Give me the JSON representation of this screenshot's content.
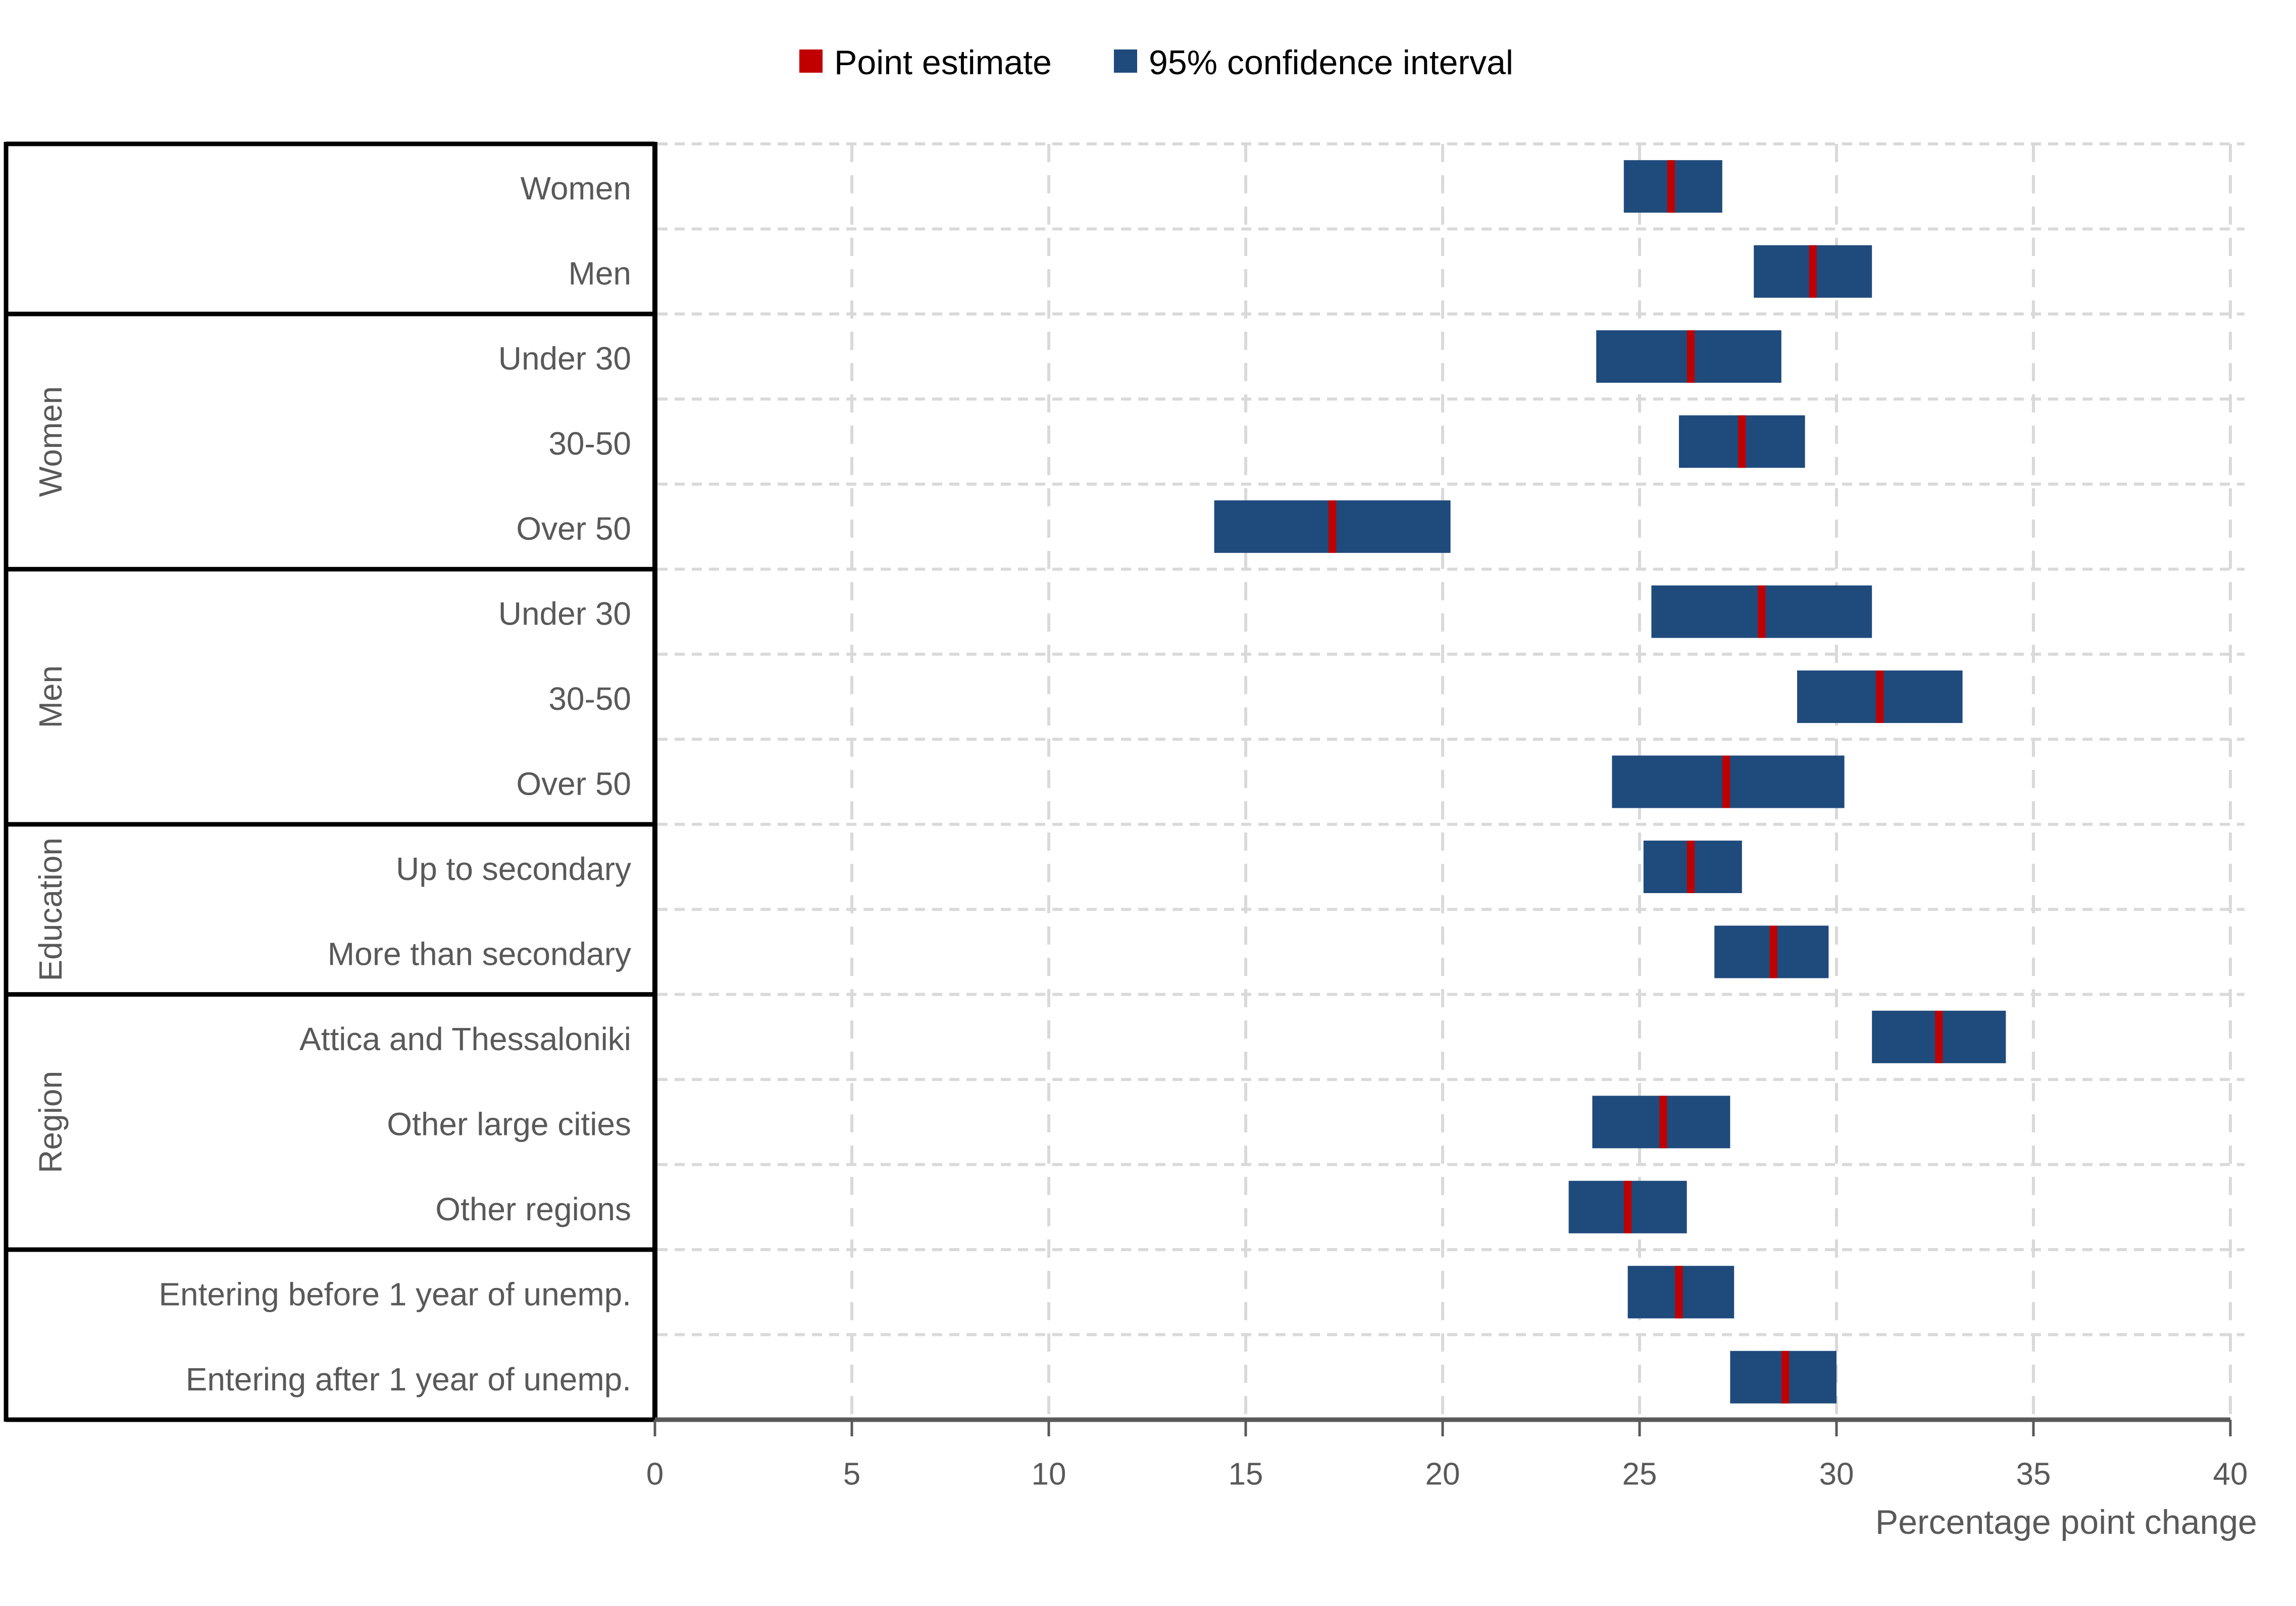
{
  "legend": {
    "items": [
      {
        "label": "Point estimate",
        "color": "#C00000"
      },
      {
        "label": "95% confidence interval",
        "color": "#1F4A7C"
      }
    ]
  },
  "axis": {
    "title": "Percentage point change"
  },
  "chart_data": {
    "type": "bar",
    "subtype": "horizontal-interval-with-point-markers",
    "title": "",
    "xlabel": "Percentage point change",
    "ylabel": "",
    "xlim": [
      0,
      40
    ],
    "xticks": [
      0,
      5,
      10,
      15,
      20,
      25,
      30,
      35,
      40
    ],
    "grid": true,
    "legend": [
      "Point estimate",
      "95% confidence interval"
    ],
    "legend_position": "top-center",
    "colors": {
      "point_estimate": "#C00000",
      "confidence_interval": "#1F4A7C"
    },
    "groups": [
      {
        "group": "",
        "rows": [
          {
            "label": "Women",
            "ci_low": 24.6,
            "ci_high": 27.1,
            "point": 25.8
          },
          {
            "label": "Men",
            "ci_low": 27.9,
            "ci_high": 30.9,
            "point": 29.4
          }
        ]
      },
      {
        "group": "Women",
        "rows": [
          {
            "label": "Under 30",
            "ci_low": 23.9,
            "ci_high": 28.6,
            "point": 26.3
          },
          {
            "label": "30-50",
            "ci_low": 26.0,
            "ci_high": 29.2,
            "point": 27.6
          },
          {
            "label": "Over 50",
            "ci_low": 14.2,
            "ci_high": 20.2,
            "point": 17.2
          }
        ]
      },
      {
        "group": "Men",
        "rows": [
          {
            "label": "Under 30",
            "ci_low": 25.3,
            "ci_high": 30.9,
            "point": 28.1
          },
          {
            "label": "30-50",
            "ci_low": 29.0,
            "ci_high": 33.2,
            "point": 31.1
          },
          {
            "label": "Over 50",
            "ci_low": 24.3,
            "ci_high": 30.2,
            "point": 27.2
          }
        ]
      },
      {
        "group": "Education",
        "rows": [
          {
            "label": "Up to secondary",
            "ci_low": 25.1,
            "ci_high": 27.6,
            "point": 26.3
          },
          {
            "label": "More than secondary",
            "ci_low": 26.9,
            "ci_high": 29.8,
            "point": 28.4
          }
        ]
      },
      {
        "group": "Region",
        "rows": [
          {
            "label": "Attica and Thessaloniki",
            "ci_low": 30.9,
            "ci_high": 34.3,
            "point": 32.6
          },
          {
            "label": "Other large cities",
            "ci_low": 23.8,
            "ci_high": 27.3,
            "point": 25.6
          },
          {
            "label": "Other regions",
            "ci_low": 23.2,
            "ci_high": 26.2,
            "point": 24.7
          }
        ]
      },
      {
        "group": "",
        "rows": [
          {
            "label": "Entering before 1 year of unemp.",
            "ci_low": 24.7,
            "ci_high": 27.4,
            "point": 26.0
          },
          {
            "label": "Entering after 1 year of unemp.",
            "ci_low": 27.3,
            "ci_high": 30.0,
            "point": 28.7
          }
        ]
      }
    ]
  }
}
